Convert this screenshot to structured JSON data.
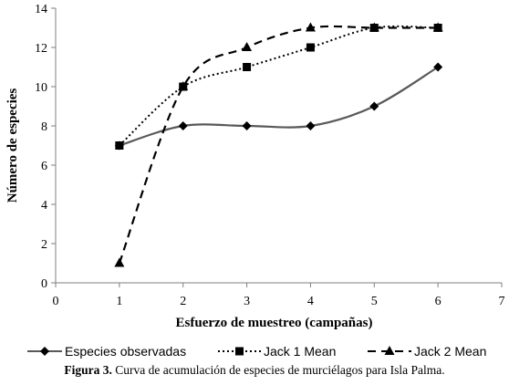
{
  "chart_data": {
    "type": "line",
    "title": "",
    "xlabel": "Esfuerzo de muestreo (campañas)",
    "ylabel": "Número de especies",
    "xlim": [
      0,
      7
    ],
    "ylim": [
      0,
      14
    ],
    "xticks": [
      "0",
      "1",
      "2",
      "3",
      "4",
      "5",
      "6",
      "7"
    ],
    "yticks": [
      "0",
      "2",
      "4",
      "6",
      "8",
      "10",
      "12",
      "14"
    ],
    "grid": false,
    "legend_position": "bottom",
    "series": [
      {
        "name": "Especies observadas",
        "x": [
          1,
          2,
          3,
          4,
          5,
          6
        ],
        "y": [
          7,
          8,
          8,
          8,
          9,
          11
        ],
        "line_style": "solid",
        "marker": "diamond",
        "color": "#595959"
      },
      {
        "name": "Jack 1 Mean",
        "x": [
          1,
          2,
          3,
          4,
          5,
          6
        ],
        "y": [
          7,
          10,
          11,
          12,
          13,
          13
        ],
        "line_style": "dotted",
        "marker": "square",
        "color": "#000000"
      },
      {
        "name": "Jack 2 Mean",
        "x": [
          1,
          2,
          3,
          4,
          5,
          6
        ],
        "y": [
          1,
          10,
          12,
          13,
          13,
          13
        ],
        "line_style": "dashed",
        "marker": "triangle",
        "color": "#000000"
      }
    ]
  },
  "caption": {
    "label": "Figura 3.",
    "text": "Curva de acumulación de especies de murciélagos para Isla Palma."
  }
}
